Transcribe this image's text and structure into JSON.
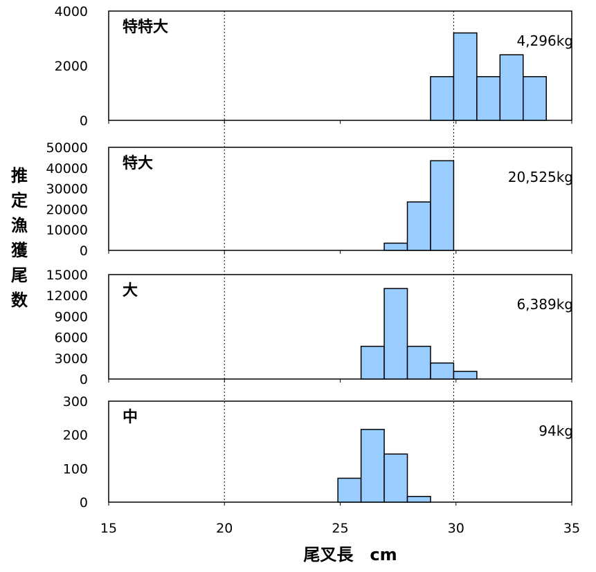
{
  "chart_data": {
    "type": "bar",
    "xlabel": "尾叉長　cm",
    "ylabel": [
      "推",
      "定",
      "漁",
      "獲",
      "尾",
      "数"
    ],
    "x_ticks": [
      "15",
      "20",
      "25",
      "30",
      "35"
    ],
    "xlim": [
      15,
      35
    ],
    "reference_lines_x": [
      20,
      29.9
    ],
    "bar_color": "#99ccff",
    "bar_edge_color": "#000000",
    "panels": [
      {
        "label": "特特大",
        "weight": "4,296kg",
        "ylim": [
          0,
          4000
        ],
        "y_ticks": [
          "4000",
          "2000",
          "0"
        ],
        "bins": [
          {
            "x0": 28.9,
            "x1": 29.9,
            "value": 1600
          },
          {
            "x0": 29.9,
            "x1": 30.9,
            "value": 3200
          },
          {
            "x0": 30.9,
            "x1": 31.9,
            "value": 1600
          },
          {
            "x0": 31.9,
            "x1": 32.9,
            "value": 2400
          },
          {
            "x0": 32.9,
            "x1": 33.9,
            "value": 1600
          }
        ]
      },
      {
        "label": "特大",
        "weight": "20,525kg",
        "ylim": [
          0,
          50000
        ],
        "y_ticks": [
          "50000",
          "40000",
          "30000",
          "20000",
          "10000",
          "0"
        ],
        "bins": [
          {
            "x0": 26.9,
            "x1": 27.9,
            "value": 3500
          },
          {
            "x0": 27.9,
            "x1": 28.9,
            "value": 23500
          },
          {
            "x0": 28.9,
            "x1": 29.9,
            "value": 43500
          }
        ]
      },
      {
        "label": "大",
        "weight": "6,389kg",
        "ylim": [
          0,
          15000
        ],
        "y_ticks": [
          "15000",
          "12000",
          "9000",
          "6000",
          "3000",
          "0"
        ],
        "bins": [
          {
            "x0": 25.9,
            "x1": 26.9,
            "value": 4700
          },
          {
            "x0": 26.9,
            "x1": 27.9,
            "value": 13000
          },
          {
            "x0": 27.9,
            "x1": 28.9,
            "value": 4700
          },
          {
            "x0": 28.9,
            "x1": 29.9,
            "value": 2300
          },
          {
            "x0": 29.9,
            "x1": 30.9,
            "value": 1100
          }
        ]
      },
      {
        "label": "中",
        "weight": "94kg",
        "ylim": [
          0,
          300
        ],
        "y_ticks": [
          "300",
          "200",
          "100",
          "0"
        ],
        "bins": [
          {
            "x0": 24.9,
            "x1": 25.9,
            "value": 71
          },
          {
            "x0": 25.9,
            "x1": 26.9,
            "value": 216
          },
          {
            "x0": 26.9,
            "x1": 27.9,
            "value": 143
          },
          {
            "x0": 27.9,
            "x1": 28.9,
            "value": 17
          }
        ]
      }
    ]
  }
}
